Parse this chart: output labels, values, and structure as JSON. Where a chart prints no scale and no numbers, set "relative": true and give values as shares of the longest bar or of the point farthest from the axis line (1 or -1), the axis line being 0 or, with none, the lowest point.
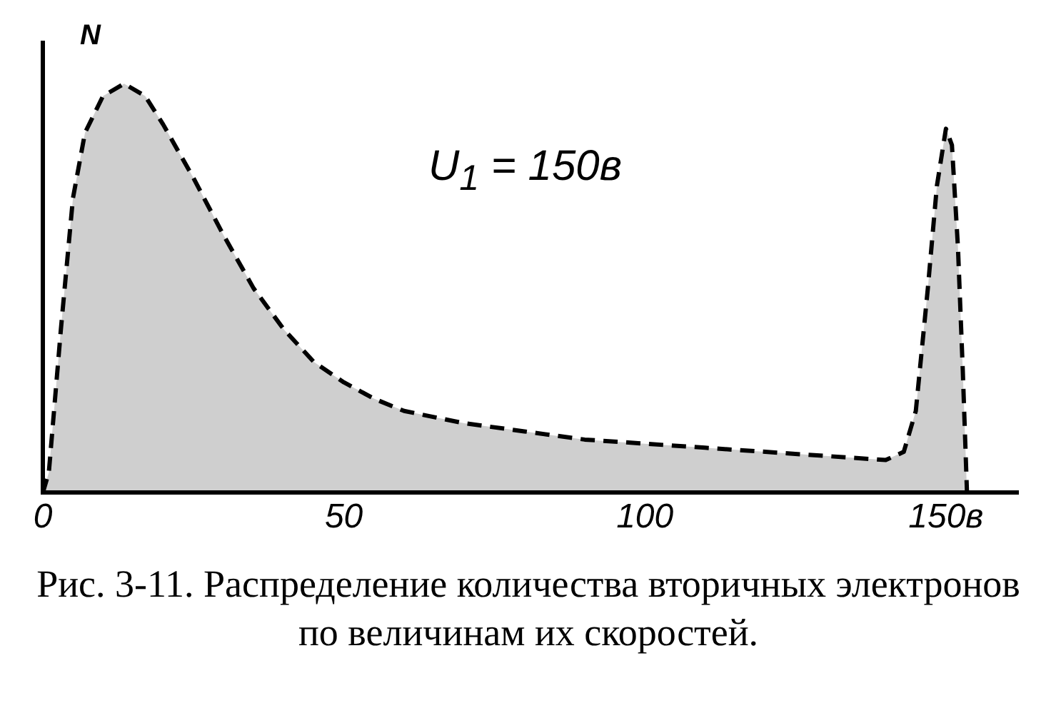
{
  "chart_data": {
    "type": "area",
    "relative": true,
    "ylabel": "N",
    "color": "#000000",
    "line_style": "dashed",
    "x": [
      0,
      1,
      3,
      5,
      7,
      10,
      13.5,
      17,
      20,
      25,
      30,
      35,
      40,
      45,
      50,
      55,
      60,
      70,
      80,
      90,
      100,
      110,
      120,
      130,
      140,
      143,
      145,
      147,
      148.5,
      150,
      151,
      152,
      152.8,
      153.5
    ],
    "values": [
      0,
      0.05,
      0.4,
      0.72,
      0.88,
      0.97,
      1,
      0.97,
      0.9,
      0.77,
      0.63,
      0.5,
      0.4,
      0.32,
      0.27,
      0.23,
      0.2,
      0.17,
      0.15,
      0.13,
      0.12,
      0.11,
      0.1,
      0.09,
      0.08,
      0.1,
      0.2,
      0.5,
      0.75,
      0.89,
      0.85,
      0.6,
      0.3,
      0
    ],
    "xlim": [
      0,
      162
    ],
    "xticks": [
      0,
      50,
      100,
      {
        "value": 150,
        "label": "150в"
      }
    ],
    "grid": false,
    "legend": false,
    "annotations": [
      "U$_{1}$ = 150в",
      "Рис. 3-11. Распределение количества вторичных электронов по величинам их скоростей."
    ]
  }
}
